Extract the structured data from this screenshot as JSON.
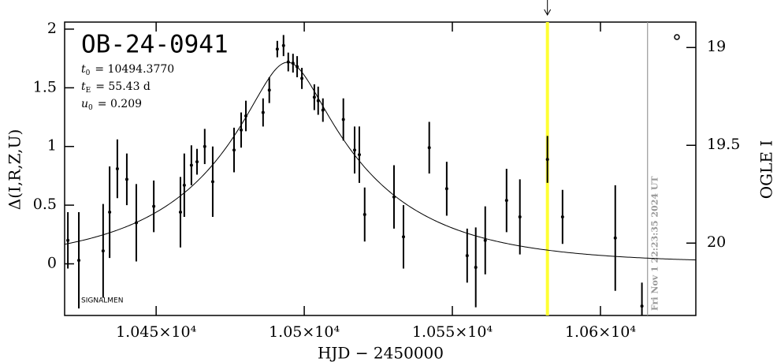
{
  "chart_data": {
    "type": "scatter",
    "title": "OB-24-0941",
    "params": [
      {
        "symbol": "t",
        "sub": "0",
        "value": 10494.377,
        "label": "= 10494.3770"
      },
      {
        "symbol": "t",
        "sub": "E",
        "value": 55.43,
        "label": "= 55.43 d"
      },
      {
        "symbol": "u",
        "sub": "0",
        "value": 0.209,
        "label": "= 0.209"
      }
    ],
    "xlabel": "HJD − 2450000",
    "ylabel": "Δ(I,R,Z,U)",
    "y2label": "OGLE I",
    "footnote": "SIGNALMEN",
    "date_text": "Fri Nov  1 22:23:35 2024 UT",
    "highlight_x": 10582.1,
    "date_line_x": 10615.9,
    "color": "#000000",
    "xlim": [
      10419.1,
      10632.2
    ],
    "ylim": [
      -0.44,
      2.06
    ],
    "y2lim": [
      20.37,
      18.87
    ],
    "xticks": [
      {
        "value": 10450,
        "label": "1.045×10⁴"
      },
      {
        "value": 10500,
        "label": "1.05×10⁴"
      },
      {
        "value": 10550,
        "label": "1.055×10⁴"
      },
      {
        "value": 10600,
        "label": "1.06×10⁴"
      }
    ],
    "yticks": [
      0,
      0.5,
      1,
      1.5,
      2
    ],
    "y2ticks": [
      19,
      19.5,
      20
    ],
    "x": [
      10420.2,
      10423.9,
      10432.1,
      10434.3,
      10436.9,
      10440.1,
      10443.3,
      10449.2,
      10458.2,
      10459.5,
      10461.9,
      10463.8,
      10466.4,
      10469.1,
      10476.3,
      10478.7,
      10480.3,
      10486.1,
      10488.2,
      10490.9,
      10493.0,
      10494.6,
      10496.2,
      10497.6,
      10499.2,
      10503.4,
      10504.7,
      10506.3,
      10513.2,
      10517.0,
      10518.6,
      10520.4,
      10530.3,
      10533.5,
      10542.2,
      10548.1,
      10555.0,
      10557.9,
      10561.1,
      10568.3,
      10572.8,
      10582.1,
      10587.2,
      10605.0,
      10614.0
    ],
    "values": [
      0.2,
      0.03,
      0.11,
      0.44,
      0.81,
      0.72,
      0.35,
      0.49,
      0.44,
      0.67,
      0.84,
      0.87,
      1.0,
      0.7,
      0.97,
      1.14,
      1.26,
      1.29,
      1.48,
      1.83,
      1.86,
      1.72,
      1.71,
      1.68,
      1.58,
      1.42,
      1.39,
      1.31,
      1.23,
      0.97,
      0.93,
      0.42,
      0.57,
      0.23,
      0.99,
      0.64,
      0.07,
      -0.03,
      0.2,
      0.54,
      0.4,
      0.89,
      0.4,
      0.22,
      -0.36
    ],
    "errors": [
      0.24,
      0.41,
      0.4,
      0.39,
      0.25,
      0.22,
      0.33,
      0.22,
      0.3,
      0.27,
      0.17,
      0.11,
      0.15,
      0.3,
      0.19,
      0.15,
      0.13,
      0.12,
      0.11,
      0.07,
      0.09,
      0.08,
      0.08,
      0.09,
      0.09,
      0.11,
      0.12,
      0.1,
      0.18,
      0.2,
      0.24,
      0.23,
      0.27,
      0.27,
      0.22,
      0.23,
      0.23,
      0.34,
      0.29,
      0.27,
      0.32,
      0.2,
      0.23,
      0.45,
      0.2
    ]
  }
}
